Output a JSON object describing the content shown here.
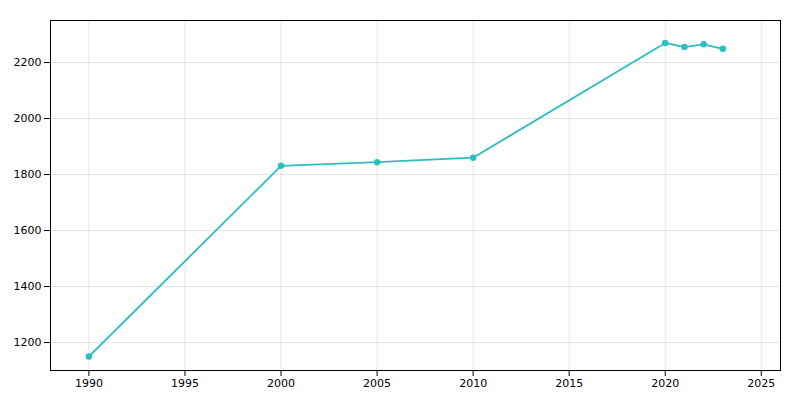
{
  "chart_data": {
    "type": "line",
    "x": [
      1990,
      2000,
      2005,
      2010,
      2020,
      2021,
      2022,
      2023
    ],
    "values": [
      1150,
      1831,
      1844,
      1860,
      2270,
      2255,
      2265,
      2249
    ],
    "color": "#2bbfbf",
    "marker": "o",
    "xlim": [
      1988,
      2026
    ],
    "ylim": [
      1100,
      2350
    ],
    "xticks": [
      1990,
      1995,
      2000,
      2005,
      2010,
      2015,
      2020,
      2025
    ],
    "yticks": [
      1200,
      1400,
      1600,
      1800,
      2000,
      2200
    ],
    "grid": true
  }
}
